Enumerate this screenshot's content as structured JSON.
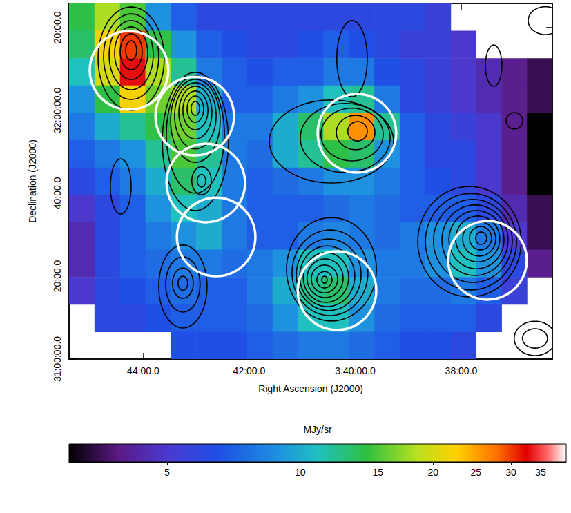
{
  "chart_data": {
    "type": "heatmap",
    "xlabel": "Right Ascension (J2000)",
    "ylabel": "Declination (J2000)",
    "xlim": [
      56.35,
      54.07
    ],
    "xticks": [
      {
        "value": 56,
        "label": "44:00.0"
      },
      {
        "value": 55.5,
        "label": "42:00.0"
      },
      {
        "value": 55,
        "label": "3:40:00.0"
      },
      {
        "value": 54.5,
        "label": "38:00.0"
      }
    ],
    "ylim": [
      31,
      32.43
    ],
    "yticks": [
      {
        "value": 31,
        "label": "31:00:00.0"
      },
      {
        "value": 31.3333,
        "label": "20:00.0"
      },
      {
        "value": 31.6667,
        "label": "40:00.0"
      },
      {
        "value": 32,
        "label": "32:00:00.0"
      },
      {
        "value": 32.3333,
        "label": "20:00.0"
      }
    ],
    "image": {
      "x": [
        56.29,
        56.17,
        56.05,
        55.93,
        55.81,
        55.69,
        55.57,
        55.45,
        55.33,
        55.21,
        55.09,
        54.97,
        54.85,
        54.73,
        54.61,
        54.49,
        54.37,
        54.25,
        54.13
      ],
      "y": [
        32.375,
        32.265,
        32.155,
        32.045,
        31.935,
        31.825,
        31.715,
        31.605,
        31.495,
        31.385,
        31.275,
        31.165,
        31.055
      ],
      "values": [
        [
          14,
          18,
          15,
          9,
          7,
          6,
          6,
          6,
          6,
          6,
          6,
          6,
          6,
          6,
          5.5,
          null,
          null,
          null,
          null
        ],
        [
          13,
          22,
          30,
          14,
          9,
          7,
          6.5,
          6,
          6,
          6.5,
          7,
          6.5,
          6,
          5.5,
          5.5,
          5,
          null,
          null,
          null
        ],
        [
          11,
          20,
          33,
          18,
          12,
          8,
          7,
          6.5,
          7,
          7,
          8,
          8,
          6.5,
          6,
          5.5,
          5,
          4.5,
          4,
          3.5
        ],
        [
          9,
          14,
          22,
          16,
          18,
          10,
          7,
          7,
          8,
          9,
          11,
          12,
          8,
          6,
          5.5,
          5,
          4.5,
          4,
          3.5
        ],
        [
          8,
          10,
          12,
          14,
          16,
          11,
          8,
          8,
          10,
          13,
          18,
          26,
          12,
          7,
          6,
          5.5,
          5,
          4,
          3
        ],
        [
          7,
          8,
          9,
          12,
          15,
          12,
          8,
          7.5,
          10,
          12,
          14,
          13,
          9,
          7,
          6,
          6,
          5,
          4,
          3
        ],
        [
          6,
          7,
          8,
          10,
          13,
          11,
          8,
          7,
          7.5,
          8,
          9,
          9,
          8,
          7,
          6.5,
          6,
          5,
          4,
          3
        ],
        [
          5,
          6,
          7,
          9,
          11,
          10,
          8,
          7,
          7,
          7,
          7.5,
          8,
          7.5,
          7,
          7,
          7,
          6,
          4.5,
          3.5
        ],
        [
          4.5,
          6,
          7,
          8,
          9,
          10,
          8,
          7,
          7,
          8,
          8.5,
          8,
          7.5,
          8,
          9,
          10,
          8,
          5,
          3.5
        ],
        [
          4.5,
          6,
          7,
          7.5,
          8,
          8,
          7.5,
          8,
          9,
          11,
          11,
          9,
          8,
          8,
          9,
          11,
          9,
          6,
          4
        ],
        [
          5,
          6,
          6.5,
          7,
          7.5,
          7,
          7,
          8,
          10,
          12,
          13,
          10,
          8,
          7.5,
          7.5,
          8,
          7,
          5.5,
          null
        ],
        [
          null,
          6,
          6,
          6.5,
          7,
          7,
          7,
          7.5,
          9,
          11,
          11,
          9,
          7.5,
          7,
          7,
          7,
          6,
          null,
          null
        ],
        [
          null,
          null,
          null,
          null,
          6.5,
          6.5,
          6.5,
          7,
          7.5,
          8,
          8,
          7.5,
          7,
          6.5,
          6.5,
          6,
          null,
          null,
          null
        ]
      ]
    },
    "colorbar": {
      "label": "MJy/sr",
      "range": [
        3,
        40
      ],
      "ticks": [
        5,
        10,
        15,
        20,
        25,
        30,
        35
      ],
      "log": true
    },
    "contours": {
      "color": "#000000",
      "ellipses": [
        [
          56.057,
          32.208,
          0.156,
          0.208
        ],
        [
          56.057,
          32.216,
          0.13,
          0.172
        ],
        [
          56.057,
          32.222,
          0.104,
          0.139
        ],
        [
          56.057,
          32.23,
          0.078,
          0.106
        ],
        [
          56.057,
          32.236,
          0.052,
          0.072
        ],
        [
          56.057,
          32.241,
          0.026,
          0.039
        ],
        [
          55.754,
          31.875,
          0.156,
          0.278
        ],
        [
          55.754,
          31.903,
          0.137,
          0.236
        ],
        [
          55.754,
          31.958,
          0.117,
          0.167
        ],
        [
          55.754,
          31.978,
          0.098,
          0.133
        ],
        [
          55.754,
          31.991,
          0.078,
          0.106
        ],
        [
          55.754,
          32.0,
          0.059,
          0.078
        ],
        [
          55.754,
          32.005,
          0.039,
          0.053
        ],
        [
          55.754,
          32.008,
          0.02,
          0.028
        ],
        [
          55.725,
          31.717,
          0.046,
          0.056
        ],
        [
          55.725,
          31.717,
          0.02,
          0.025
        ],
        [
          55.112,
          31.875,
          0.293,
          0.167
        ],
        [
          55.047,
          31.889,
          0.212,
          0.139
        ],
        [
          55.015,
          31.903,
          0.147,
          0.106
        ],
        [
          54.998,
          31.911,
          0.091,
          0.069
        ],
        [
          54.989,
          31.916,
          0.046,
          0.039
        ],
        [
          55.015,
          32.208,
          0.072,
          0.153
        ],
        [
          55.112,
          31.361,
          0.212,
          0.208
        ],
        [
          55.119,
          31.347,
          0.179,
          0.172
        ],
        [
          55.125,
          31.339,
          0.153,
          0.144
        ],
        [
          55.132,
          31.333,
          0.13,
          0.122
        ],
        [
          55.138,
          31.328,
          0.107,
          0.1
        ],
        [
          55.142,
          31.325,
          0.085,
          0.078
        ],
        [
          55.145,
          31.322,
          0.062,
          0.056
        ],
        [
          55.145,
          31.319,
          0.036,
          0.033
        ],
        [
          55.145,
          31.319,
          0.013,
          0.014
        ],
        [
          54.461,
          31.472,
          0.244,
          0.222
        ],
        [
          54.454,
          31.472,
          0.215,
          0.194
        ],
        [
          54.445,
          31.475,
          0.186,
          0.167
        ],
        [
          54.435,
          31.478,
          0.156,
          0.142
        ],
        [
          54.428,
          31.48,
          0.13,
          0.117
        ],
        [
          54.422,
          31.483,
          0.104,
          0.092
        ],
        [
          54.415,
          31.483,
          0.078,
          0.069
        ],
        [
          54.409,
          31.486,
          0.052,
          0.047
        ],
        [
          54.406,
          31.486,
          0.026,
          0.025
        ],
        [
          55.813,
          31.292,
          0.114,
          0.167
        ],
        [
          55.813,
          31.3,
          0.081,
          0.111
        ],
        [
          55.813,
          31.305,
          0.049,
          0.061
        ],
        [
          55.813,
          31.305,
          0.023,
          0.028
        ],
        [
          56.106,
          31.694,
          0.049,
          0.111
        ],
        [
          54.249,
          31.958,
          0.039,
          0.033
        ],
        [
          54.152,
          31.083,
          0.098,
          0.069
        ],
        [
          54.152,
          31.083,
          0.059,
          0.039
        ],
        [
          54.103,
          32.361,
          0.081,
          0.056
        ],
        [
          54.347,
          32.18,
          0.039,
          0.083
        ]
      ]
    },
    "circles": {
      "x": [
        56.067,
        55.757,
        55.705,
        55.656,
        54.992,
        55.086,
        54.376
      ],
      "y": [
        32.161,
        31.977,
        31.708,
        31.491,
        31.908,
        31.275,
        31.397
      ],
      "radius": 0.158,
      "color": "#ffffff"
    }
  }
}
